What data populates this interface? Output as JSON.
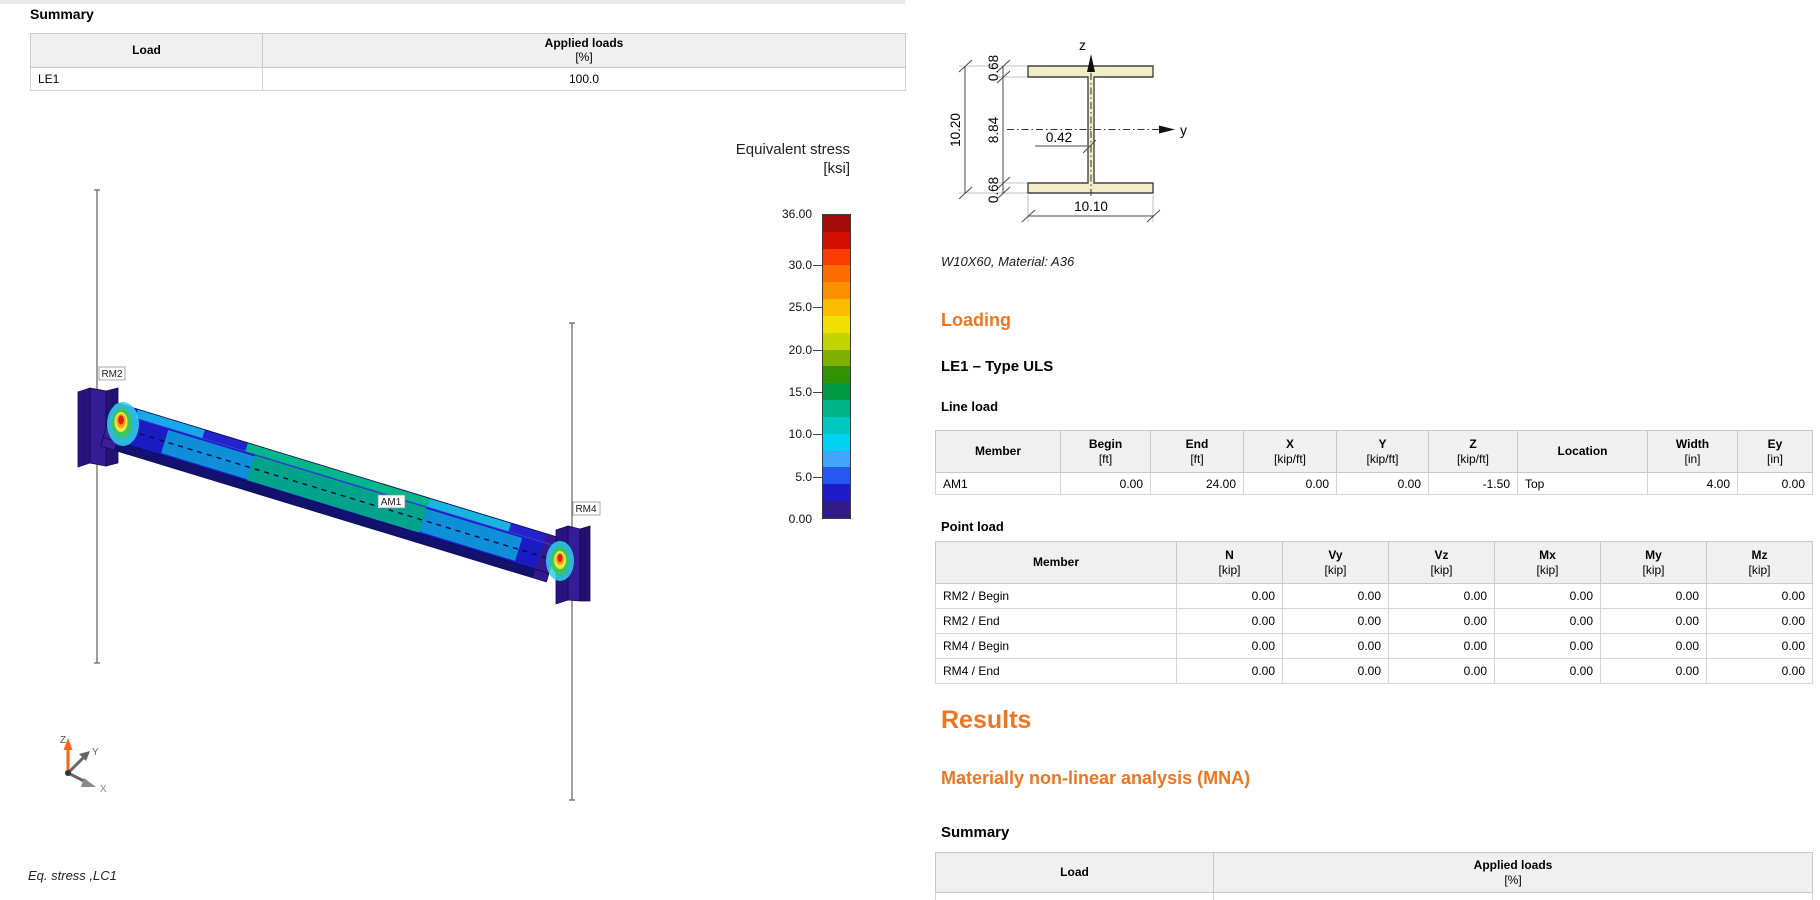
{
  "accent_orange": "#ee7623",
  "left_pane": {
    "summary_heading": "Summary",
    "summary_table": {
      "col_load": "Load",
      "col_applied": "Applied loads",
      "col_applied_unit": "[%]",
      "rows": [
        {
          "load": "LE1",
          "applied": "100.0"
        }
      ]
    },
    "legend": {
      "title": "Equivalent stress",
      "unit": "[ksi]",
      "max": "36.00",
      "min": "0.00",
      "tick_labels": [
        "36.00",
        "30.0",
        "25.0",
        "20.0",
        "15.0",
        "10.0",
        "5.0",
        "0.00"
      ],
      "band_colors": [
        "#a50b0b",
        "#d40f00",
        "#fb3c00",
        "#fb6d00",
        "#fb9100",
        "#fbbc00",
        "#f0e000",
        "#c3d400",
        "#7fb200",
        "#2f9400",
        "#009a45",
        "#00b387",
        "#00c7c0",
        "#00d2f0",
        "#3fa4fa",
        "#2456f0",
        "#1c1cca",
        "#321b86"
      ]
    },
    "scene": {
      "label_left_column": "RM2",
      "label_beam": "AM1",
      "label_right_column": "RM4",
      "axis_x": "X",
      "axis_y": "Y",
      "axis_z": "Z",
      "caption": "Eq. stress ,LC1"
    }
  },
  "right_pane": {
    "section": {
      "subtitle": "W10X60, Material: A36",
      "dim_height": "10.20",
      "dim_web_height": "8.84",
      "dim_flange_top": "0.68",
      "dim_flange_bottom": "0.68",
      "dim_web_thickness": "0.42",
      "dim_width": "10.10",
      "axis_vertical": "z",
      "axis_horizontal": "y"
    },
    "loading_heading": "Loading",
    "le1_heading": "LE1 – Type ULS",
    "line_load": {
      "label": "Line load",
      "headers": [
        {
          "t": "Member",
          "u": ""
        },
        {
          "t": "Begin",
          "u": "[ft]"
        },
        {
          "t": "End",
          "u": "[ft]"
        },
        {
          "t": "X",
          "u": "[kip/ft]"
        },
        {
          "t": "Y",
          "u": "[kip/ft]"
        },
        {
          "t": "Z",
          "u": "[kip/ft]"
        },
        {
          "t": "Location",
          "u": ""
        },
        {
          "t": "Width",
          "u": "[in]"
        },
        {
          "t": "Ey",
          "u": "[in]"
        }
      ],
      "rows": [
        [
          "AM1",
          "0.00",
          "24.00",
          "0.00",
          "0.00",
          "-1.50",
          "Top",
          "4.00",
          "0.00"
        ]
      ]
    },
    "point_load": {
      "label": "Point load",
      "headers": [
        {
          "t": "Member",
          "u": ""
        },
        {
          "t": "N",
          "u": "[kip]"
        },
        {
          "t": "Vy",
          "u": "[kip]"
        },
        {
          "t": "Vz",
          "u": "[kip]"
        },
        {
          "t": "Mx",
          "u": "[kip]"
        },
        {
          "t": "My",
          "u": "[kip]"
        },
        {
          "t": "Mz",
          "u": "[kip]"
        }
      ],
      "rows": [
        [
          "RM2 / Begin",
          "0.00",
          "0.00",
          "0.00",
          "0.00",
          "0.00",
          "0.00"
        ],
        [
          "RM2 / End",
          "0.00",
          "0.00",
          "0.00",
          "0.00",
          "0.00",
          "0.00"
        ],
        [
          "RM4 / Begin",
          "0.00",
          "0.00",
          "0.00",
          "0.00",
          "0.00",
          "0.00"
        ],
        [
          "RM4 / End",
          "0.00",
          "0.00",
          "0.00",
          "0.00",
          "0.00",
          "0.00"
        ]
      ]
    },
    "results_heading": "Results",
    "mna_heading": "Materially non-linear analysis (MNA)",
    "summary_heading": "Summary",
    "summary_table": {
      "col_load": "Load",
      "col_applied": "Applied loads",
      "col_applied_unit": "[%]"
    }
  }
}
